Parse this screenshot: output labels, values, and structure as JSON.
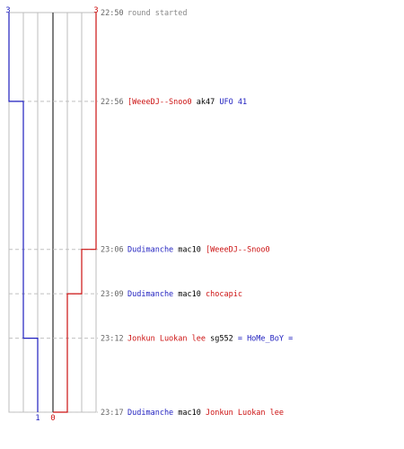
{
  "colors": {
    "blue": "#1f1fbf",
    "red": "#cc1111",
    "grid": "#bdbdbd",
    "center": "#555555",
    "dash": "#c0c0c0",
    "time": "#666666"
  },
  "chart_data": {
    "type": "line",
    "title": "",
    "xlabel": "",
    "ylabel": "",
    "x_unit": "time",
    "team_blue": {
      "start_count": "3",
      "end_count": "1"
    },
    "team_red": {
      "start_count": "3",
      "end_count": "0"
    },
    "series": [
      {
        "color": "#1f1fbf",
        "points": [
          [
            "22:50",
            3
          ],
          [
            "22:56",
            2
          ],
          [
            "23:12",
            1
          ]
        ]
      },
      {
        "color": "#cc1111",
        "points": [
          [
            "22:50",
            3
          ],
          [
            "23:06",
            2
          ],
          [
            "23:09",
            1
          ],
          [
            "23:17",
            0
          ]
        ]
      }
    ],
    "grid": true
  },
  "events": [
    {
      "time": "22:50",
      "parts": [
        {
          "text": "round started",
          "cls": "tg"
        }
      ]
    },
    {
      "time": "22:56",
      "parts": [
        {
          "text": "[WeeeDJ--Snoo0",
          "cls": "tr"
        },
        {
          "text": " ak47 ",
          "cls": "tl"
        },
        {
          "text": "UFO 41",
          "cls": "tb"
        }
      ]
    },
    {
      "time": "23:06",
      "parts": [
        {
          "text": "Dudimanche",
          "cls": "tb"
        },
        {
          "text": " mac10 ",
          "cls": "tl"
        },
        {
          "text": "[WeeeDJ--Snoo0",
          "cls": "tr"
        }
      ]
    },
    {
      "time": "23:09",
      "parts": [
        {
          "text": "Dudimanche",
          "cls": "tb"
        },
        {
          "text": " mac10 ",
          "cls": "tl"
        },
        {
          "text": "chocapic",
          "cls": "tr"
        }
      ]
    },
    {
      "time": "23:12",
      "parts": [
        {
          "text": "Jonkun Luokan lee",
          "cls": "tr"
        },
        {
          "text": " sg552 ",
          "cls": "tl"
        },
        {
          "text": "= HoMe_BoY =",
          "cls": "tb"
        }
      ]
    },
    {
      "time": "23:17",
      "parts": [
        {
          "text": "Dudimanche",
          "cls": "tb"
        },
        {
          "text": " mac10 ",
          "cls": "tl"
        },
        {
          "text": "Jonkun Luokan lee",
          "cls": "tr"
        }
      ]
    }
  ]
}
